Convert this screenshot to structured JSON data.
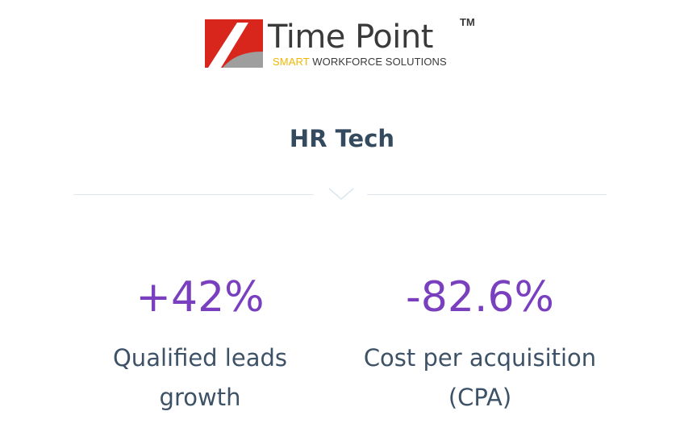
{
  "logo": {
    "name": "Time Point",
    "trademark": "TM",
    "tagline_accent": "SMART",
    "tagline_rest": " WORKFORCE SOLUTIONS",
    "mark_icon": "red-square-swoosh-icon"
  },
  "industry": "HR Tech",
  "divider": {
    "icon": "chevron-down-icon"
  },
  "metrics": [
    {
      "value": "+42%",
      "label_line1": "Qualified leads",
      "label_line2": "growth"
    },
    {
      "value": "-82.6%",
      "label_line1": "Cost per acquisition",
      "label_line2": "(CPA)"
    }
  ],
  "colors": {
    "metric_value": "#7a3fbf",
    "text": "#344a5e",
    "logo_red": "#d8261d",
    "logo_accent": "#f2b705",
    "divider": "#dde6ee"
  }
}
